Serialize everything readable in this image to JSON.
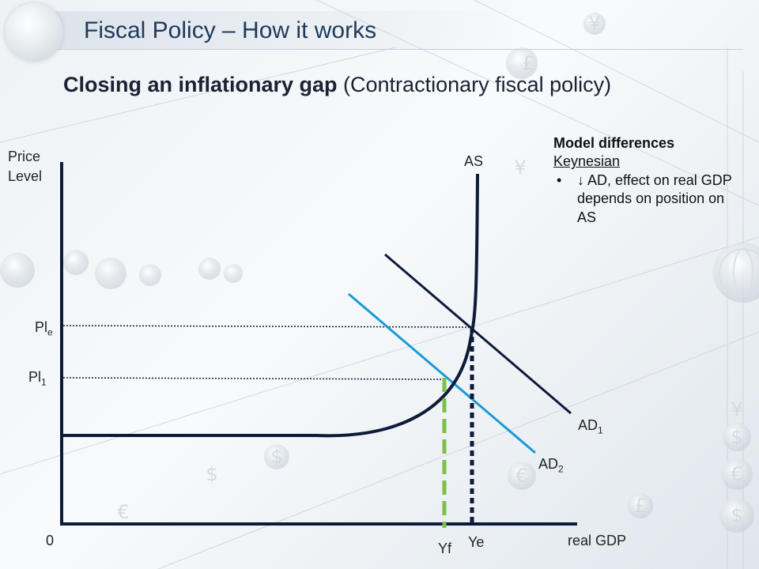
{
  "title": "Fiscal Policy – How it works",
  "subtitle": {
    "bold": "Closing an inflationary gap",
    "rest": " (Contractionary fiscal policy)"
  },
  "axes": {
    "y_label_line1": "Price",
    "y_label_line2": "Level",
    "x_label": "real GDP",
    "origin": "0"
  },
  "curves": {
    "as": "AS",
    "ad1_base": "AD",
    "ad1_sub": "1",
    "ad2_base": "AD",
    "ad2_sub": "2"
  },
  "price_levels": {
    "ple_base": "Pl",
    "ple_sub": "e",
    "pl1_base": "Pl",
    "pl1_sub": "1"
  },
  "outputs": {
    "yf": "Yf",
    "ye": "Ye"
  },
  "model": {
    "heading": "Model differences",
    "subheading": "Keynesian",
    "bullet_mark": "•",
    "bullet_text": "↓ AD, effect on real GDP depends on position on AS"
  },
  "colors": {
    "ad1": "#0d1a3a",
    "ad2": "#1a9ad6",
    "as": "#0d1a3a",
    "yf_line": "#7cc04a",
    "title": "#1f3a5c"
  },
  "background_icons": [
    "£",
    "¥",
    "¥",
    "$",
    "€",
    "£",
    "¥",
    "$",
    "€",
    "$",
    "€",
    "$",
    "globe-icon"
  ]
}
